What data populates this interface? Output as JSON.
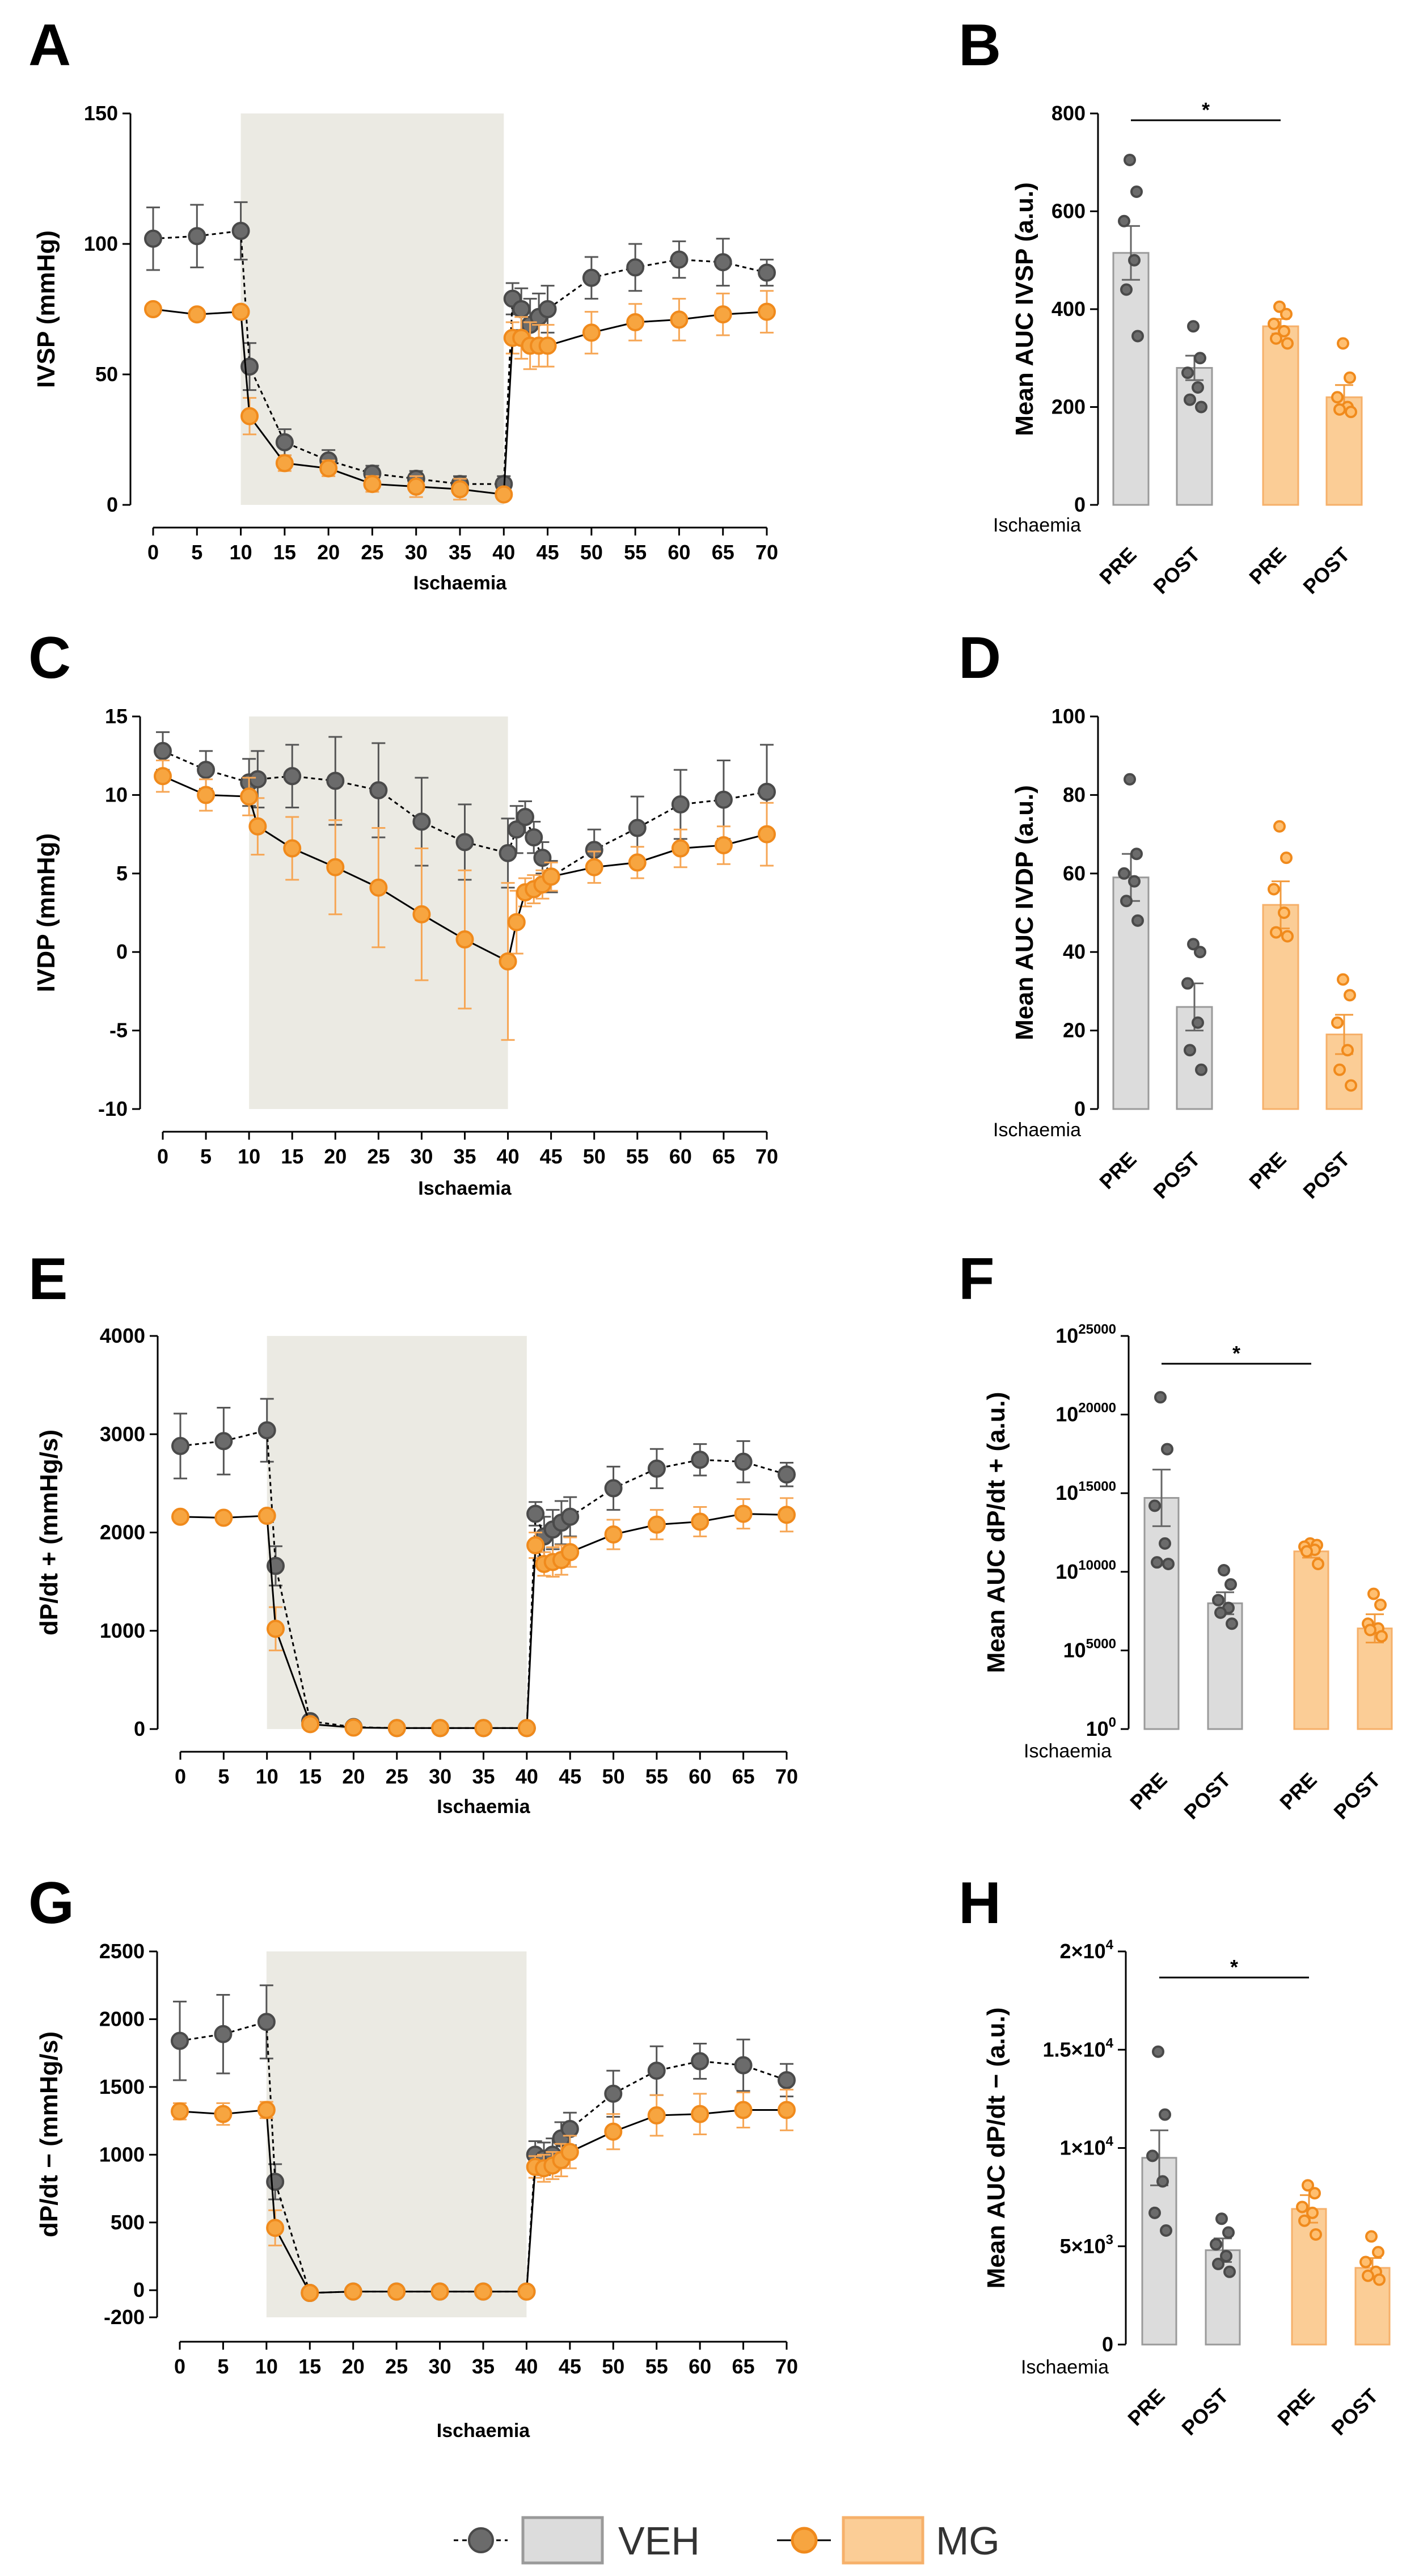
{
  "colors": {
    "veh_marker": "#6b6b6b",
    "veh_bar_fill": "#dcdcdc",
    "veh_bar_stroke": "#9a9a9a",
    "mg_marker": "#f7a540",
    "mg_marker_stroke": "#f08a1c",
    "mg_bar_fill": "#fbcd96",
    "mg_bar_stroke": "#f6b06a",
    "ischaemia_shade": "#ebeae3"
  },
  "legend": {
    "veh": "VEH",
    "mg": "MG"
  },
  "chart_data": [
    {
      "panel": "A",
      "type": "line",
      "xlabel": "Ischaemia",
      "ylabel": "IVSP (mmHg)",
      "ylim": [
        0,
        150
      ],
      "yticks": [
        "0",
        "50",
        "100",
        "150"
      ],
      "x": [
        0,
        5,
        10,
        11,
        15,
        20,
        25,
        30,
        35,
        40,
        41,
        42,
        43,
        44,
        45,
        50,
        55,
        60,
        65,
        70
      ],
      "xticks": [
        "0",
        "5",
        "10",
        "15",
        "20",
        "25",
        "30",
        "35",
        "40",
        "45",
        "50",
        "55",
        "60",
        "65",
        "70"
      ],
      "shade": [
        10,
        40
      ],
      "series": [
        {
          "name": "VEH",
          "style": "dashed",
          "values": [
            102,
            103,
            105,
            53,
            24,
            17,
            12,
            10,
            8,
            8,
            79,
            75,
            69,
            72,
            75,
            87,
            91,
            94,
            93,
            89
          ],
          "errors": [
            12,
            12,
            11,
            9,
            5,
            4,
            3,
            3,
            3,
            3,
            6,
            8,
            10,
            9,
            9,
            8,
            9,
            7,
            9,
            5
          ]
        },
        {
          "name": "MG",
          "style": "solid",
          "values": [
            75,
            73,
            74,
            34,
            16,
            14,
            8,
            7,
            6,
            4,
            64,
            64,
            61,
            61,
            61,
            66,
            70,
            71,
            73,
            74
          ],
          "errors": [
            2,
            2,
            2,
            7,
            3,
            3,
            3,
            4,
            4,
            2,
            6,
            8,
            9,
            8,
            8,
            8,
            7,
            8,
            8,
            8
          ]
        }
      ]
    },
    {
      "panel": "B",
      "type": "bar",
      "ylabel": "Mean AUC IVSP (a.u.)",
      "ischaemia_label": "Ischaemia",
      "categories": [
        "PRE",
        "POST",
        "PRE",
        "POST"
      ],
      "groups": [
        "VEH",
        "VEH",
        "MG",
        "MG"
      ],
      "ylim": [
        0,
        800
      ],
      "yticks": [
        "0",
        "200",
        "400",
        "600",
        "800"
      ],
      "values": [
        515,
        280,
        365,
        220
      ],
      "errors": [
        55,
        25,
        15,
        25
      ],
      "points": [
        [
          705,
          640,
          580,
          500,
          440,
          345
        ],
        [
          365,
          300,
          270,
          240,
          215,
          200
        ],
        [
          405,
          390,
          370,
          355,
          340,
          330
        ],
        [
          330,
          260,
          220,
          200,
          195,
          190
        ]
      ],
      "significance": {
        "from": 0,
        "to": 2,
        "label": "*"
      }
    },
    {
      "panel": "C",
      "type": "line",
      "xlabel": "Ischaemia",
      "ylabel": "IVDP (mmHg)",
      "ylim": [
        -10,
        15
      ],
      "yticks": [
        "-10",
        "-5",
        "0",
        "5",
        "10",
        "15"
      ],
      "x": [
        0,
        5,
        10,
        11,
        15,
        20,
        25,
        30,
        35,
        40,
        41,
        42,
        43,
        44,
        45,
        50,
        55,
        60,
        65,
        70
      ],
      "xticks": [
        "0",
        "5",
        "10",
        "15",
        "20",
        "25",
        "30",
        "35",
        "40",
        "45",
        "50",
        "55",
        "60",
        "65",
        "70"
      ],
      "shade": [
        10,
        40
      ],
      "series": [
        {
          "name": "VEH",
          "style": "dashed",
          "values": [
            12.8,
            11.6,
            10.8,
            11.0,
            11.2,
            10.9,
            10.3,
            8.3,
            7.0,
            6.3,
            7.8,
            8.6,
            7.3,
            6.0,
            4.8,
            6.5,
            7.9,
            9.4,
            9.7,
            10.2
          ],
          "errors": [
            1.2,
            1.2,
            1.5,
            1.8,
            2.0,
            2.8,
            3.0,
            2.8,
            2.4,
            2.2,
            1.5,
            1.0,
            1.0,
            1.0,
            1.0,
            1.3,
            2.0,
            2.2,
            2.5,
            3.0
          ]
        },
        {
          "name": "MG",
          "style": "solid",
          "values": [
            11.2,
            10.0,
            9.9,
            8.0,
            6.6,
            5.4,
            4.1,
            2.4,
            0.8,
            -0.6,
            1.9,
            3.8,
            4.0,
            4.3,
            4.8,
            5.4,
            5.7,
            6.6,
            6.8,
            7.5
          ],
          "errors": [
            1.0,
            1.0,
            1.2,
            1.8,
            2.0,
            3.0,
            3.8,
            4.2,
            4.4,
            5.0,
            2.0,
            0.9,
            0.9,
            0.9,
            0.9,
            1.0,
            1.0,
            1.2,
            1.2,
            2.0
          ]
        }
      ]
    },
    {
      "panel": "D",
      "type": "bar",
      "ylabel": "Mean AUC IVDP (a.u.)",
      "ischaemia_label": "Ischaemia",
      "categories": [
        "PRE",
        "POST",
        "PRE",
        "POST"
      ],
      "groups": [
        "VEH",
        "VEH",
        "MG",
        "MG"
      ],
      "ylim": [
        0,
        100
      ],
      "yticks": [
        "0",
        "20",
        "40",
        "60",
        "80",
        "100"
      ],
      "values": [
        59,
        26,
        52,
        19
      ],
      "errors": [
        6,
        6,
        6,
        5
      ],
      "points": [
        [
          84,
          65,
          60,
          58,
          53,
          48
        ],
        [
          42,
          40,
          32,
          22,
          15,
          10
        ],
        [
          72,
          64,
          56,
          50,
          45,
          44
        ],
        [
          33,
          29,
          22,
          15,
          10,
          6
        ]
      ],
      "significance": null
    },
    {
      "panel": "E",
      "type": "line",
      "xlabel": "Ischaemia",
      "ylabel": "dP/dt + (mmHg/s)",
      "ylim": [
        0,
        4000
      ],
      "yticks": [
        "0",
        "1000",
        "2000",
        "3000",
        "4000"
      ],
      "x": [
        0,
        5,
        10,
        11,
        15,
        20,
        25,
        30,
        35,
        40,
        41,
        42,
        43,
        44,
        45,
        50,
        55,
        60,
        65,
        70
      ],
      "xticks": [
        "0",
        "5",
        "10",
        "15",
        "20",
        "25",
        "30",
        "35",
        "40",
        "45",
        "50",
        "55",
        "60",
        "65",
        "70"
      ],
      "shade": [
        10,
        40
      ],
      "series": [
        {
          "name": "VEH",
          "style": "dashed",
          "values": [
            2880,
            2930,
            3040,
            1660,
            80,
            20,
            10,
            10,
            10,
            10,
            2190,
            1960,
            2030,
            2100,
            2160,
            2450,
            2650,
            2740,
            2720,
            2590
          ],
          "errors": [
            330,
            340,
            320,
            200,
            20,
            5,
            5,
            5,
            5,
            5,
            120,
            200,
            200,
            220,
            200,
            220,
            200,
            160,
            210,
            120
          ]
        },
        {
          "name": "MG",
          "style": "solid",
          "values": [
            2160,
            2150,
            2170,
            1020,
            50,
            15,
            10,
            10,
            10,
            10,
            1870,
            1680,
            1700,
            1720,
            1800,
            1980,
            2080,
            2110,
            2190,
            2180
          ],
          "errors": [
            30,
            30,
            40,
            220,
            20,
            5,
            5,
            5,
            5,
            5,
            130,
            120,
            150,
            150,
            150,
            150,
            150,
            150,
            150,
            170
          ]
        }
      ]
    },
    {
      "panel": "F",
      "type": "bar",
      "scale": "log",
      "ylabel": "Mean AUC dP/dt + (a.u.)",
      "ischaemia_label": "Ischaemia",
      "categories": [
        "PRE",
        "POST",
        "PRE",
        "POST"
      ],
      "groups": [
        "VEH",
        "VEH",
        "MG",
        "MG"
      ],
      "ylim": [
        0,
        25000
      ],
      "yticks": [
        {
          "base": "10",
          "exp": "0"
        },
        {
          "base": "10",
          "exp": "5000"
        },
        {
          "base": "10",
          "exp": "10000"
        },
        {
          "base": "10",
          "exp": "15000"
        },
        {
          "base": "10",
          "exp": "20000"
        },
        {
          "base": "10",
          "exp": "25000"
        }
      ],
      "values": [
        14700,
        8000,
        11300,
        6400
      ],
      "errors": [
        1800,
        700,
        400,
        900
      ],
      "points": [
        [
          21100,
          17800,
          14200,
          11800,
          10600,
          10500
        ],
        [
          10100,
          9200,
          8200,
          7700,
          7400,
          6700
        ],
        [
          11800,
          11700,
          11600,
          11400,
          11300,
          10500
        ],
        [
          8600,
          7900,
          6700,
          6400,
          6300,
          5900
        ]
      ],
      "significance": {
        "from": 0,
        "to": 2,
        "label": "*"
      }
    },
    {
      "panel": "G",
      "type": "line",
      "xlabel": "Ischaemia",
      "ylabel": "dP/dt − (mmHg/s)",
      "ylim": [
        -200,
        2500
      ],
      "yticks": [
        "-200",
        "0",
        "500",
        "1000",
        "1500",
        "2000",
        "2500"
      ],
      "x": [
        0,
        5,
        10,
        11,
        15,
        20,
        25,
        30,
        35,
        40,
        41,
        42,
        43,
        44,
        45,
        50,
        55,
        60,
        65,
        70
      ],
      "xticks": [
        "0",
        "5",
        "10",
        "15",
        "20",
        "25",
        "30",
        "35",
        "40",
        "45",
        "50",
        "55",
        "60",
        "65",
        "70"
      ],
      "shade": [
        10,
        40
      ],
      "series": [
        {
          "name": "VEH",
          "style": "dashed",
          "values": [
            1840,
            1890,
            1980,
            800,
            -20,
            -10,
            -10,
            -10,
            -10,
            -10,
            1000,
            970,
            1000,
            1120,
            1190,
            1450,
            1620,
            1690,
            1660,
            1550
          ],
          "errors": [
            290,
            290,
            270,
            130,
            10,
            5,
            5,
            5,
            5,
            5,
            100,
            120,
            120,
            120,
            120,
            170,
            180,
            130,
            190,
            120
          ]
        },
        {
          "name": "MG",
          "style": "solid",
          "values": [
            1320,
            1300,
            1330,
            460,
            -20,
            -10,
            -10,
            -10,
            -10,
            -10,
            910,
            900,
            920,
            960,
            1020,
            1170,
            1290,
            1300,
            1330,
            1330
          ],
          "errors": [
            60,
            80,
            60,
            130,
            10,
            5,
            5,
            5,
            5,
            5,
            80,
            100,
            100,
            120,
            120,
            130,
            150,
            150,
            130,
            150
          ]
        }
      ]
    },
    {
      "panel": "H",
      "type": "bar",
      "ylabel": "Mean AUC dP/dt − (a.u.)",
      "ischaemia_label": "Ischaemia",
      "categories": [
        "PRE",
        "POST",
        "PRE",
        "POST"
      ],
      "groups": [
        "VEH",
        "VEH",
        "MG",
        "MG"
      ],
      "ylim": [
        0,
        20000
      ],
      "yticks": [
        {
          "base": "0",
          "exp": ""
        },
        {
          "base": "5×10",
          "exp": "3"
        },
        {
          "base": "1×10",
          "exp": "4"
        },
        {
          "base": "1.5×10",
          "exp": "4"
        },
        {
          "base": "2×10",
          "exp": "4"
        }
      ],
      "values": [
        9500,
        4800,
        6900,
        3900
      ],
      "errors": [
        1400,
        600,
        700,
        500
      ],
      "points": [
        [
          14900,
          11700,
          9600,
          8300,
          6700,
          5800
        ],
        [
          6400,
          5700,
          5100,
          4500,
          4100,
          3700
        ],
        [
          8100,
          7700,
          7000,
          6700,
          6300,
          5600
        ],
        [
          5500,
          4700,
          4200,
          3700,
          3500,
          3300
        ]
      ],
      "significance": {
        "from": 0,
        "to": 2,
        "label": "*"
      }
    }
  ]
}
